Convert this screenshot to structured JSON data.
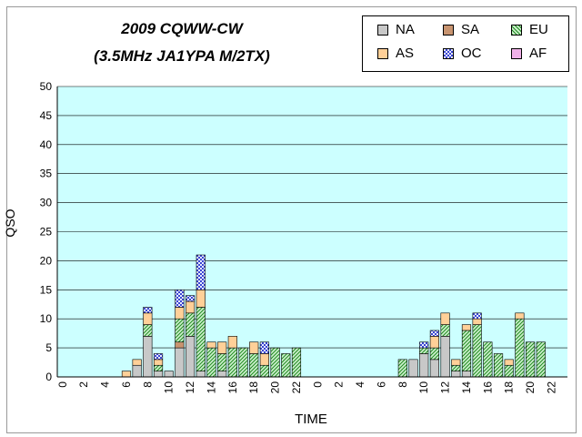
{
  "chart_data": {
    "type": "bar",
    "stacked": true,
    "title": "2009 CQWW-CW",
    "subtitle": "(3.5MHz  JA1YPA  M/2TX)",
    "xlabel": "TIME",
    "ylabel": "QSO",
    "ylim": [
      0,
      50
    ],
    "yticks": [
      0,
      5,
      10,
      15,
      20,
      25,
      30,
      35,
      40,
      45,
      50
    ],
    "grid": true,
    "legend_position": "top-right",
    "categories": [
      "0",
      "1",
      "2",
      "3",
      "4",
      "5",
      "6",
      "7",
      "8",
      "9",
      "10",
      "11",
      "12",
      "13",
      "14",
      "15",
      "16",
      "17",
      "18",
      "19",
      "20",
      "21",
      "22",
      "23",
      "0",
      "1",
      "2",
      "3",
      "4",
      "5",
      "6",
      "7",
      "8",
      "9",
      "10",
      "11",
      "12",
      "13",
      "14",
      "15",
      "16",
      "17",
      "18",
      "19",
      "20",
      "21",
      "22",
      "23"
    ],
    "tick_labels": [
      "0",
      "",
      "2",
      "",
      "4",
      "",
      "6",
      "",
      "8",
      "",
      "10",
      "",
      "12",
      "",
      "14",
      "",
      "16",
      "",
      "18",
      "",
      "20",
      "",
      "22",
      "",
      "0",
      "",
      "2",
      "",
      "4",
      "",
      "6",
      "",
      "8",
      "",
      "10",
      "",
      "12",
      "",
      "14",
      "",
      "16",
      "",
      "18",
      "",
      "20",
      "",
      "22",
      ""
    ],
    "series": [
      {
        "name": "NA",
        "color": "#c8c8c8",
        "pattern": "none",
        "values": [
          0,
          0,
          0,
          0,
          0,
          0,
          0,
          2,
          7,
          1,
          1,
          5,
          7,
          1,
          0,
          1,
          0,
          0,
          0,
          0,
          0,
          0,
          0,
          0,
          0,
          0,
          0,
          0,
          0,
          0,
          0,
          0,
          0,
          3,
          4,
          3,
          7,
          1,
          1,
          0,
          0,
          0,
          0,
          0,
          0,
          0,
          0,
          0
        ]
      },
      {
        "name": "SA",
        "color": "#c89470",
        "pattern": "none",
        "values": [
          0,
          0,
          0,
          0,
          0,
          0,
          0,
          0,
          0,
          0,
          0,
          1,
          0,
          0,
          0,
          0,
          0,
          0,
          0,
          0,
          0,
          0,
          0,
          0,
          0,
          0,
          0,
          0,
          0,
          0,
          0,
          0,
          0,
          0,
          0,
          0,
          0,
          0,
          0,
          0,
          0,
          0,
          0,
          0,
          0,
          0,
          0,
          0
        ]
      },
      {
        "name": "EU",
        "color": "#2e9a2e",
        "pattern": "hatch",
        "values": [
          0,
          0,
          0,
          0,
          0,
          0,
          0,
          0,
          2,
          1,
          0,
          4,
          4,
          11,
          5,
          3,
          5,
          5,
          4,
          2,
          5,
          4,
          5,
          0,
          0,
          0,
          0,
          0,
          0,
          0,
          0,
          0,
          3,
          0,
          1,
          2,
          2,
          1,
          7,
          9,
          6,
          4,
          2,
          10,
          6,
          6,
          0,
          0
        ]
      },
      {
        "name": "AS",
        "color": "#ffd098",
        "pattern": "none",
        "values": [
          0,
          0,
          0,
          0,
          0,
          0,
          1,
          1,
          2,
          1,
          0,
          2,
          2,
          3,
          1,
          2,
          2,
          0,
          2,
          2,
          0,
          0,
          0,
          0,
          0,
          0,
          0,
          0,
          0,
          0,
          0,
          0,
          0,
          0,
          0,
          2,
          2,
          1,
          1,
          1,
          0,
          0,
          1,
          1,
          0,
          0,
          0,
          0
        ]
      },
      {
        "name": "OC",
        "color": "#3a46d2",
        "pattern": "check",
        "values": [
          0,
          0,
          0,
          0,
          0,
          0,
          0,
          0,
          1,
          1,
          0,
          3,
          1,
          6,
          0,
          0,
          0,
          0,
          0,
          2,
          0,
          0,
          0,
          0,
          0,
          0,
          0,
          0,
          0,
          0,
          0,
          0,
          0,
          0,
          1,
          1,
          0,
          0,
          0,
          1,
          0,
          0,
          0,
          0,
          0,
          0,
          0,
          0
        ]
      },
      {
        "name": "AF",
        "color": "#f0b0e8",
        "pattern": "none",
        "values": [
          0,
          0,
          0,
          0,
          0,
          0,
          0,
          0,
          0,
          0,
          0,
          0,
          0,
          0,
          0,
          0,
          0,
          0,
          0,
          0,
          0,
          0,
          0,
          0,
          0,
          0,
          0,
          0,
          0,
          0,
          0,
          0,
          0,
          0,
          0,
          0,
          0,
          0,
          0,
          0,
          0,
          0,
          0,
          0,
          0,
          0,
          0,
          0
        ]
      }
    ]
  }
}
